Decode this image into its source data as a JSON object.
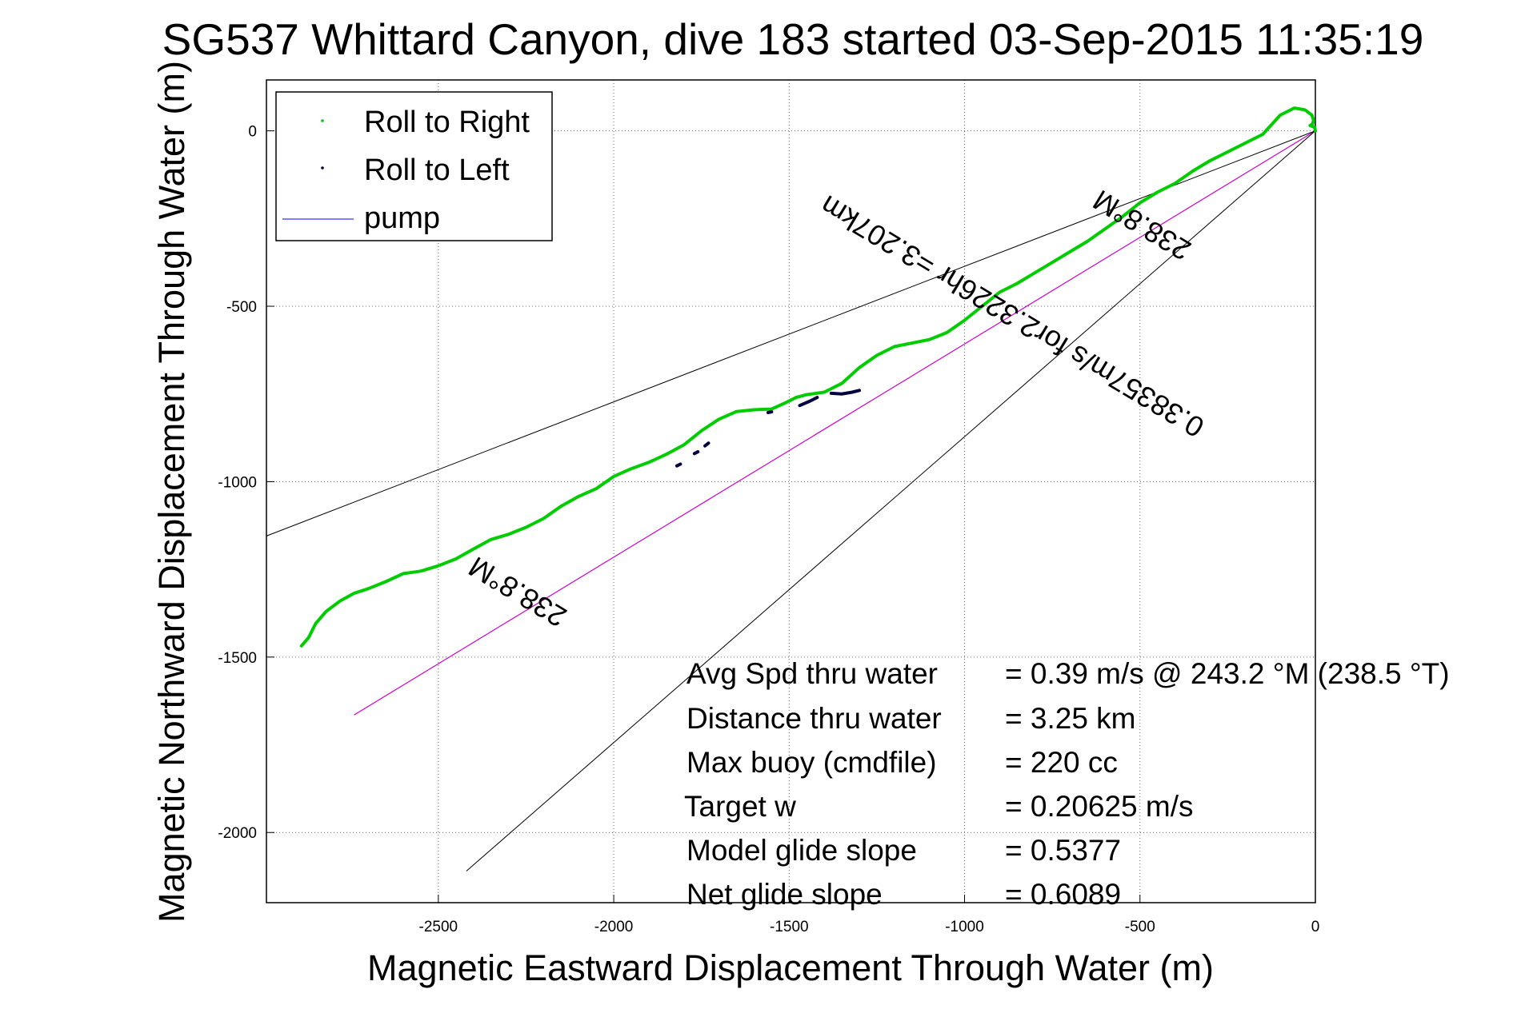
{
  "chart_data": {
    "type": "line",
    "title": "SG537 Whittard Canyon, dive 183 started 03-Sep-2015 11:35:19",
    "xlabel": "Magnetic Eastward Displacement Through Water (m)",
    "ylabel": "Magnetic Northward Displacement Through Water (m)",
    "xlim": [
      -2990,
      0
    ],
    "ylim": [
      -2200,
      145
    ],
    "xticks": [
      -2500,
      -2000,
      -1500,
      -1000,
      -500,
      0
    ],
    "yticks": [
      0,
      -500,
      -1000,
      -1500,
      -2000
    ],
    "xtick_labels": [
      "-2500",
      "-2000",
      "-1500",
      "-1000",
      "-500",
      "0"
    ],
    "ytick_labels": [
      "0",
      "-500",
      "-1000",
      "-1500",
      "-2000"
    ],
    "grid": true,
    "legend_position": "top-left",
    "legend": [
      {
        "label": "Roll to Right",
        "color": "#00cc00",
        "marker": "dot"
      },
      {
        "label": "Roll to Left",
        "color": "#000040",
        "marker": "dot"
      },
      {
        "label": "pump",
        "color": "#0000ff",
        "marker": "line"
      }
    ],
    "series": [
      {
        "name": "Roll to Right",
        "color": "#00cc00",
        "x": [
          -2890,
          -2870,
          -2850,
          -2820,
          -2780,
          -2740,
          -2700,
          -2650,
          -2600,
          -2550,
          -2500,
          -2450,
          -2400,
          -2350,
          -2300,
          -2250,
          -2200,
          -2150,
          -2100,
          -2050,
          -2000,
          -1950,
          -1900,
          -1850,
          -1800,
          -1750,
          -1700,
          -1650,
          -1600,
          -1550,
          -1510,
          -1480,
          -1450,
          -1400,
          -1350,
          -1300,
          -1250,
          -1200,
          -1150,
          -1100,
          -1050,
          -1000,
          -950,
          -900,
          -850,
          -800,
          -750,
          -700,
          -650,
          -600,
          -550,
          -500,
          -450,
          -400,
          -350,
          -300,
          -250,
          -200,
          -150,
          -100,
          -60,
          -30,
          -10,
          -5,
          -8,
          -15,
          -2,
          0
        ],
        "y": [
          -1468,
          -1445,
          -1405,
          -1370,
          -1340,
          -1318,
          -1305,
          -1285,
          -1262,
          -1255,
          -1240,
          -1220,
          -1192,
          -1165,
          -1150,
          -1130,
          -1105,
          -1070,
          -1042,
          -1020,
          -985,
          -963,
          -945,
          -922,
          -895,
          -855,
          -822,
          -800,
          -795,
          -793,
          -775,
          -760,
          -752,
          -745,
          -720,
          -675,
          -640,
          -615,
          -605,
          -595,
          -575,
          -540,
          -500,
          -460,
          -435,
          -405,
          -375,
          -345,
          -315,
          -280,
          -245,
          -205,
          -175,
          -150,
          -115,
          -85,
          -60,
          -35,
          -10,
          45,
          65,
          60,
          45,
          30,
          20,
          15,
          10,
          0
        ]
      },
      {
        "name": "Roll to Left",
        "color": "#000040",
        "segments": [
          {
            "x": [
              -1820,
              -1810
            ],
            "y": [
              -955,
              -950
            ]
          },
          {
            "x": [
              -1770,
              -1760
            ],
            "y": [
              -920,
              -915
            ]
          },
          {
            "x": [
              -1740,
              -1730
            ],
            "y": [
              -898,
              -890
            ]
          },
          {
            "x": [
              -1560,
              -1550
            ],
            "y": [
              -803,
              -801
            ]
          },
          {
            "x": [
              -1470,
              -1440,
              -1420
            ],
            "y": [
              -783,
              -770,
              -760
            ]
          },
          {
            "x": [
              -1380,
              -1350,
              -1320,
              -1300
            ],
            "y": [
              -748,
              -750,
              -745,
              -740
            ]
          }
        ]
      },
      {
        "name": "magenta-track",
        "color": "#cc00cc",
        "x": [
          -2740,
          0
        ],
        "y": [
          -1665,
          0
        ]
      },
      {
        "name": "upper-bound-line",
        "color": "#000000",
        "x": [
          -2990,
          0
        ],
        "y": [
          -1155,
          0
        ]
      },
      {
        "name": "lower-bound-line",
        "color": "#000000",
        "x": [
          -2420,
          0
        ],
        "y": [
          -2110,
          0
        ]
      }
    ],
    "annotations": [
      {
        "text": "238.8°M",
        "x": -2260,
        "y": -1290,
        "angle_deg": 211
      },
      {
        "text": "238.8°M",
        "x": -480,
        "y": -245,
        "angle_deg": 211
      },
      {
        "text": "0.38357m/s for2.3226hr =3.207km",
        "x": -850,
        "y": -505,
        "angle_deg": 211
      }
    ],
    "stats": [
      {
        "label": "Avg Spd thru water",
        "value": "=  0.39 m/s @ 243.2 °M (238.5 °T)"
      },
      {
        "label": "Distance thru water",
        "value": "=  3.25 km"
      },
      {
        "label": "Max buoy (cmdfile)",
        "value": "= 220 cc"
      },
      {
        "label": "Target w",
        "value": "= 0.20625 m/s"
      },
      {
        "label": "Model glide slope",
        "value": "= 0.5377"
      },
      {
        "label": "Net glide slope",
        "value": "= 0.6089"
      }
    ]
  }
}
